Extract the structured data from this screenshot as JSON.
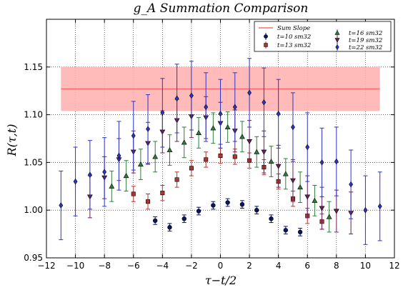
{
  "chart_data": {
    "type": "scatter",
    "title": "g_A Summation Comparison",
    "xlabel": "τ−t/2",
    "ylabel": "R(τ,t)",
    "xlim": [
      -12,
      12
    ],
    "ylim": [
      0.95,
      1.2
    ],
    "xticks": [
      -12,
      -10,
      -8,
      -6,
      -4,
      -2,
      0,
      2,
      4,
      6,
      8,
      10,
      12
    ],
    "yticks": [
      0.95,
      1.0,
      1.05,
      1.1,
      1.15
    ],
    "xtick_labels": [
      "−12",
      "−10",
      "−8",
      "−6",
      "−4",
      "−2",
      "0",
      "2",
      "4",
      "6",
      "8",
      "10",
      "12"
    ],
    "ytick_labels": [
      "0.95",
      "1.00",
      "1.05",
      "1.10",
      "1.15"
    ],
    "grid": true,
    "legend_position": "top-right",
    "band": {
      "name": "Sum Slope",
      "value": 1.127,
      "lower": 1.104,
      "upper": 1.15,
      "x_range": [
        -11,
        11
      ],
      "line_color": "#ff6b6b",
      "fill_color": "#ffb3b3"
    },
    "series": [
      {
        "name": "t=10 sm32",
        "marker": "circle",
        "color": "#0b1560",
        "points": [
          {
            "x": -4.5,
            "y": 0.989,
            "err": 0.004
          },
          {
            "x": -3.5,
            "y": 0.982,
            "err": 0.004
          },
          {
            "x": -2.5,
            "y": 0.991,
            "err": 0.004
          },
          {
            "x": -1.5,
            "y": 0.999,
            "err": 0.004
          },
          {
            "x": -0.5,
            "y": 1.005,
            "err": 0.004
          },
          {
            "x": 0.5,
            "y": 1.008,
            "err": 0.004
          },
          {
            "x": 1.5,
            "y": 1.006,
            "err": 0.004
          },
          {
            "x": 2.5,
            "y": 1.0,
            "err": 0.004
          },
          {
            "x": 3.5,
            "y": 0.991,
            "err": 0.004
          },
          {
            "x": 4.5,
            "y": 0.979,
            "err": 0.004
          },
          {
            "x": 5.5,
            "y": 0.977,
            "err": 0.004
          }
        ]
      },
      {
        "name": "t=13 sm32",
        "marker": "square",
        "color": "#b0352c",
        "points": [
          {
            "x": -6.0,
            "y": 1.017,
            "err": 0.008
          },
          {
            "x": -5.0,
            "y": 1.009,
            "err": 0.008
          },
          {
            "x": -4.0,
            "y": 1.018,
            "err": 0.008
          },
          {
            "x": -3.0,
            "y": 1.032,
            "err": 0.008
          },
          {
            "x": -2.0,
            "y": 1.044,
            "err": 0.008
          },
          {
            "x": -1.0,
            "y": 1.053,
            "err": 0.008
          },
          {
            "x": 0.0,
            "y": 1.057,
            "err": 0.008
          },
          {
            "x": 1.0,
            "y": 1.056,
            "err": 0.008
          },
          {
            "x": 2.0,
            "y": 1.052,
            "err": 0.008
          },
          {
            "x": 3.0,
            "y": 1.045,
            "err": 0.008
          },
          {
            "x": 4.0,
            "y": 1.03,
            "err": 0.008
          },
          {
            "x": 5.0,
            "y": 1.012,
            "err": 0.008
          },
          {
            "x": 6.0,
            "y": 0.994,
            "err": 0.008
          },
          {
            "x": 7.0,
            "y": 0.988,
            "err": 0.008
          }
        ]
      },
      {
        "name": "t=16 sm32",
        "marker": "triangle-up",
        "color": "#2f7d3a",
        "points": [
          {
            "x": -7.5,
            "y": 1.025,
            "err": 0.016
          },
          {
            "x": -6.5,
            "y": 1.036,
            "err": 0.016
          },
          {
            "x": -5.5,
            "y": 1.048,
            "err": 0.016
          },
          {
            "x": -4.5,
            "y": 1.056,
            "err": 0.016
          },
          {
            "x": -3.5,
            "y": 1.063,
            "err": 0.016
          },
          {
            "x": -2.5,
            "y": 1.071,
            "err": 0.016
          },
          {
            "x": -1.5,
            "y": 1.081,
            "err": 0.016
          },
          {
            "x": -0.5,
            "y": 1.086,
            "err": 0.016
          },
          {
            "x": 0.5,
            "y": 1.087,
            "err": 0.016
          },
          {
            "x": 1.5,
            "y": 1.077,
            "err": 0.016
          },
          {
            "x": 2.5,
            "y": 1.061,
            "err": 0.016
          },
          {
            "x": 3.5,
            "y": 1.051,
            "err": 0.016
          },
          {
            "x": 4.5,
            "y": 1.038,
            "err": 0.016
          },
          {
            "x": 5.5,
            "y": 1.024,
            "err": 0.016
          },
          {
            "x": 6.5,
            "y": 1.01,
            "err": 0.016
          },
          {
            "x": 7.5,
            "y": 0.993,
            "err": 0.016
          }
        ]
      },
      {
        "name": "t=19 sm32",
        "marker": "triangle-down",
        "color": "#6b1f5e",
        "points": [
          {
            "x": -9.0,
            "y": 1.014,
            "err": 0.022
          },
          {
            "x": -8.0,
            "y": 1.034,
            "err": 0.022
          },
          {
            "x": -7.0,
            "y": 1.053,
            "err": 0.022
          },
          {
            "x": -6.0,
            "y": 1.061,
            "err": 0.022
          },
          {
            "x": -5.0,
            "y": 1.07,
            "err": 0.022
          },
          {
            "x": -4.0,
            "y": 1.082,
            "err": 0.022
          },
          {
            "x": -3.0,
            "y": 1.094,
            "err": 0.022
          },
          {
            "x": -2.0,
            "y": 1.098,
            "err": 0.022
          },
          {
            "x": -1.0,
            "y": 1.097,
            "err": 0.022
          },
          {
            "x": 0.0,
            "y": 1.091,
            "err": 0.022
          },
          {
            "x": 1.0,
            "y": 1.083,
            "err": 0.022
          },
          {
            "x": 2.0,
            "y": 1.072,
            "err": 0.022
          },
          {
            "x": 3.0,
            "y": 1.061,
            "err": 0.022
          },
          {
            "x": 4.0,
            "y": 1.046,
            "err": 0.022
          },
          {
            "x": 5.0,
            "y": 1.031,
            "err": 0.022
          },
          {
            "x": 6.0,
            "y": 1.014,
            "err": 0.022
          },
          {
            "x": 7.0,
            "y": 1.002,
            "err": 0.022
          },
          {
            "x": 8.0,
            "y": 0.999,
            "err": 0.022
          },
          {
            "x": 9.0,
            "y": 0.997,
            "err": 0.022
          }
        ]
      },
      {
        "name": "t=22 sm32",
        "marker": "diamond",
        "color": "#2b35c9",
        "points": [
          {
            "x": -11.0,
            "y": 1.005,
            "err": 0.036
          },
          {
            "x": -10.0,
            "y": 1.03,
            "err": 0.036
          },
          {
            "x": -9.0,
            "y": 1.037,
            "err": 0.036
          },
          {
            "x": -8.0,
            "y": 1.04,
            "err": 0.036
          },
          {
            "x": -7.0,
            "y": 1.057,
            "err": 0.036
          },
          {
            "x": -6.0,
            "y": 1.078,
            "err": 0.036
          },
          {
            "x": -5.0,
            "y": 1.085,
            "err": 0.036
          },
          {
            "x": -4.0,
            "y": 1.102,
            "err": 0.036
          },
          {
            "x": -3.0,
            "y": 1.117,
            "err": 0.036
          },
          {
            "x": -2.0,
            "y": 1.12,
            "err": 0.036
          },
          {
            "x": -1.0,
            "y": 1.108,
            "err": 0.036
          },
          {
            "x": 0.0,
            "y": 1.101,
            "err": 0.036
          },
          {
            "x": 1.0,
            "y": 1.108,
            "err": 0.036
          },
          {
            "x": 2.0,
            "y": 1.123,
            "err": 0.036
          },
          {
            "x": 3.0,
            "y": 1.113,
            "err": 0.036
          },
          {
            "x": 4.0,
            "y": 1.101,
            "err": 0.036
          },
          {
            "x": 5.0,
            "y": 1.087,
            "err": 0.036
          },
          {
            "x": 6.0,
            "y": 1.066,
            "err": 0.036
          },
          {
            "x": 7.0,
            "y": 1.05,
            "err": 0.036
          },
          {
            "x": 8.0,
            "y": 1.051,
            "err": 0.036
          },
          {
            "x": 9.0,
            "y": 1.027,
            "err": 0.036
          },
          {
            "x": 10.0,
            "y": 1.0,
            "err": 0.036
          },
          {
            "x": 11.0,
            "y": 1.004,
            "err": 0.036
          }
        ]
      }
    ]
  }
}
